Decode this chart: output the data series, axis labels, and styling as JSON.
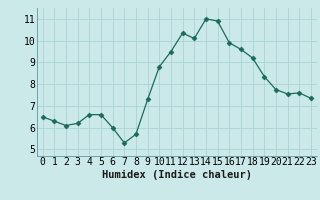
{
  "x": [
    0,
    1,
    2,
    3,
    4,
    5,
    6,
    7,
    8,
    9,
    10,
    11,
    12,
    13,
    14,
    15,
    16,
    17,
    18,
    19,
    20,
    21,
    22,
    23
  ],
  "y": [
    6.5,
    6.3,
    6.1,
    6.2,
    6.6,
    6.6,
    6.0,
    5.3,
    5.7,
    7.3,
    8.8,
    9.5,
    10.35,
    10.1,
    11.0,
    10.9,
    9.9,
    9.6,
    9.2,
    8.35,
    7.75,
    7.55,
    7.6,
    7.35
  ],
  "xlabel": "Humidex (Indice chaleur)",
  "xlim": [
    -0.5,
    23.5
  ],
  "ylim": [
    4.7,
    11.5
  ],
  "yticks": [
    5,
    6,
    7,
    8,
    9,
    10,
    11
  ],
  "xtick_labels": [
    "0",
    "1",
    "2",
    "3",
    "4",
    "5",
    "6",
    "7",
    "8",
    "9",
    "10",
    "11",
    "12",
    "13",
    "14",
    "15",
    "16",
    "17",
    "18",
    "19",
    "20",
    "21",
    "22",
    "23"
  ],
  "line_color": "#1a6b5a",
  "marker": "D",
  "marker_size": 2.5,
  "bg_color": "#cce9e9",
  "grid_color": "#aad4d4",
  "label_fontsize": 7.5,
  "tick_fontsize": 7
}
